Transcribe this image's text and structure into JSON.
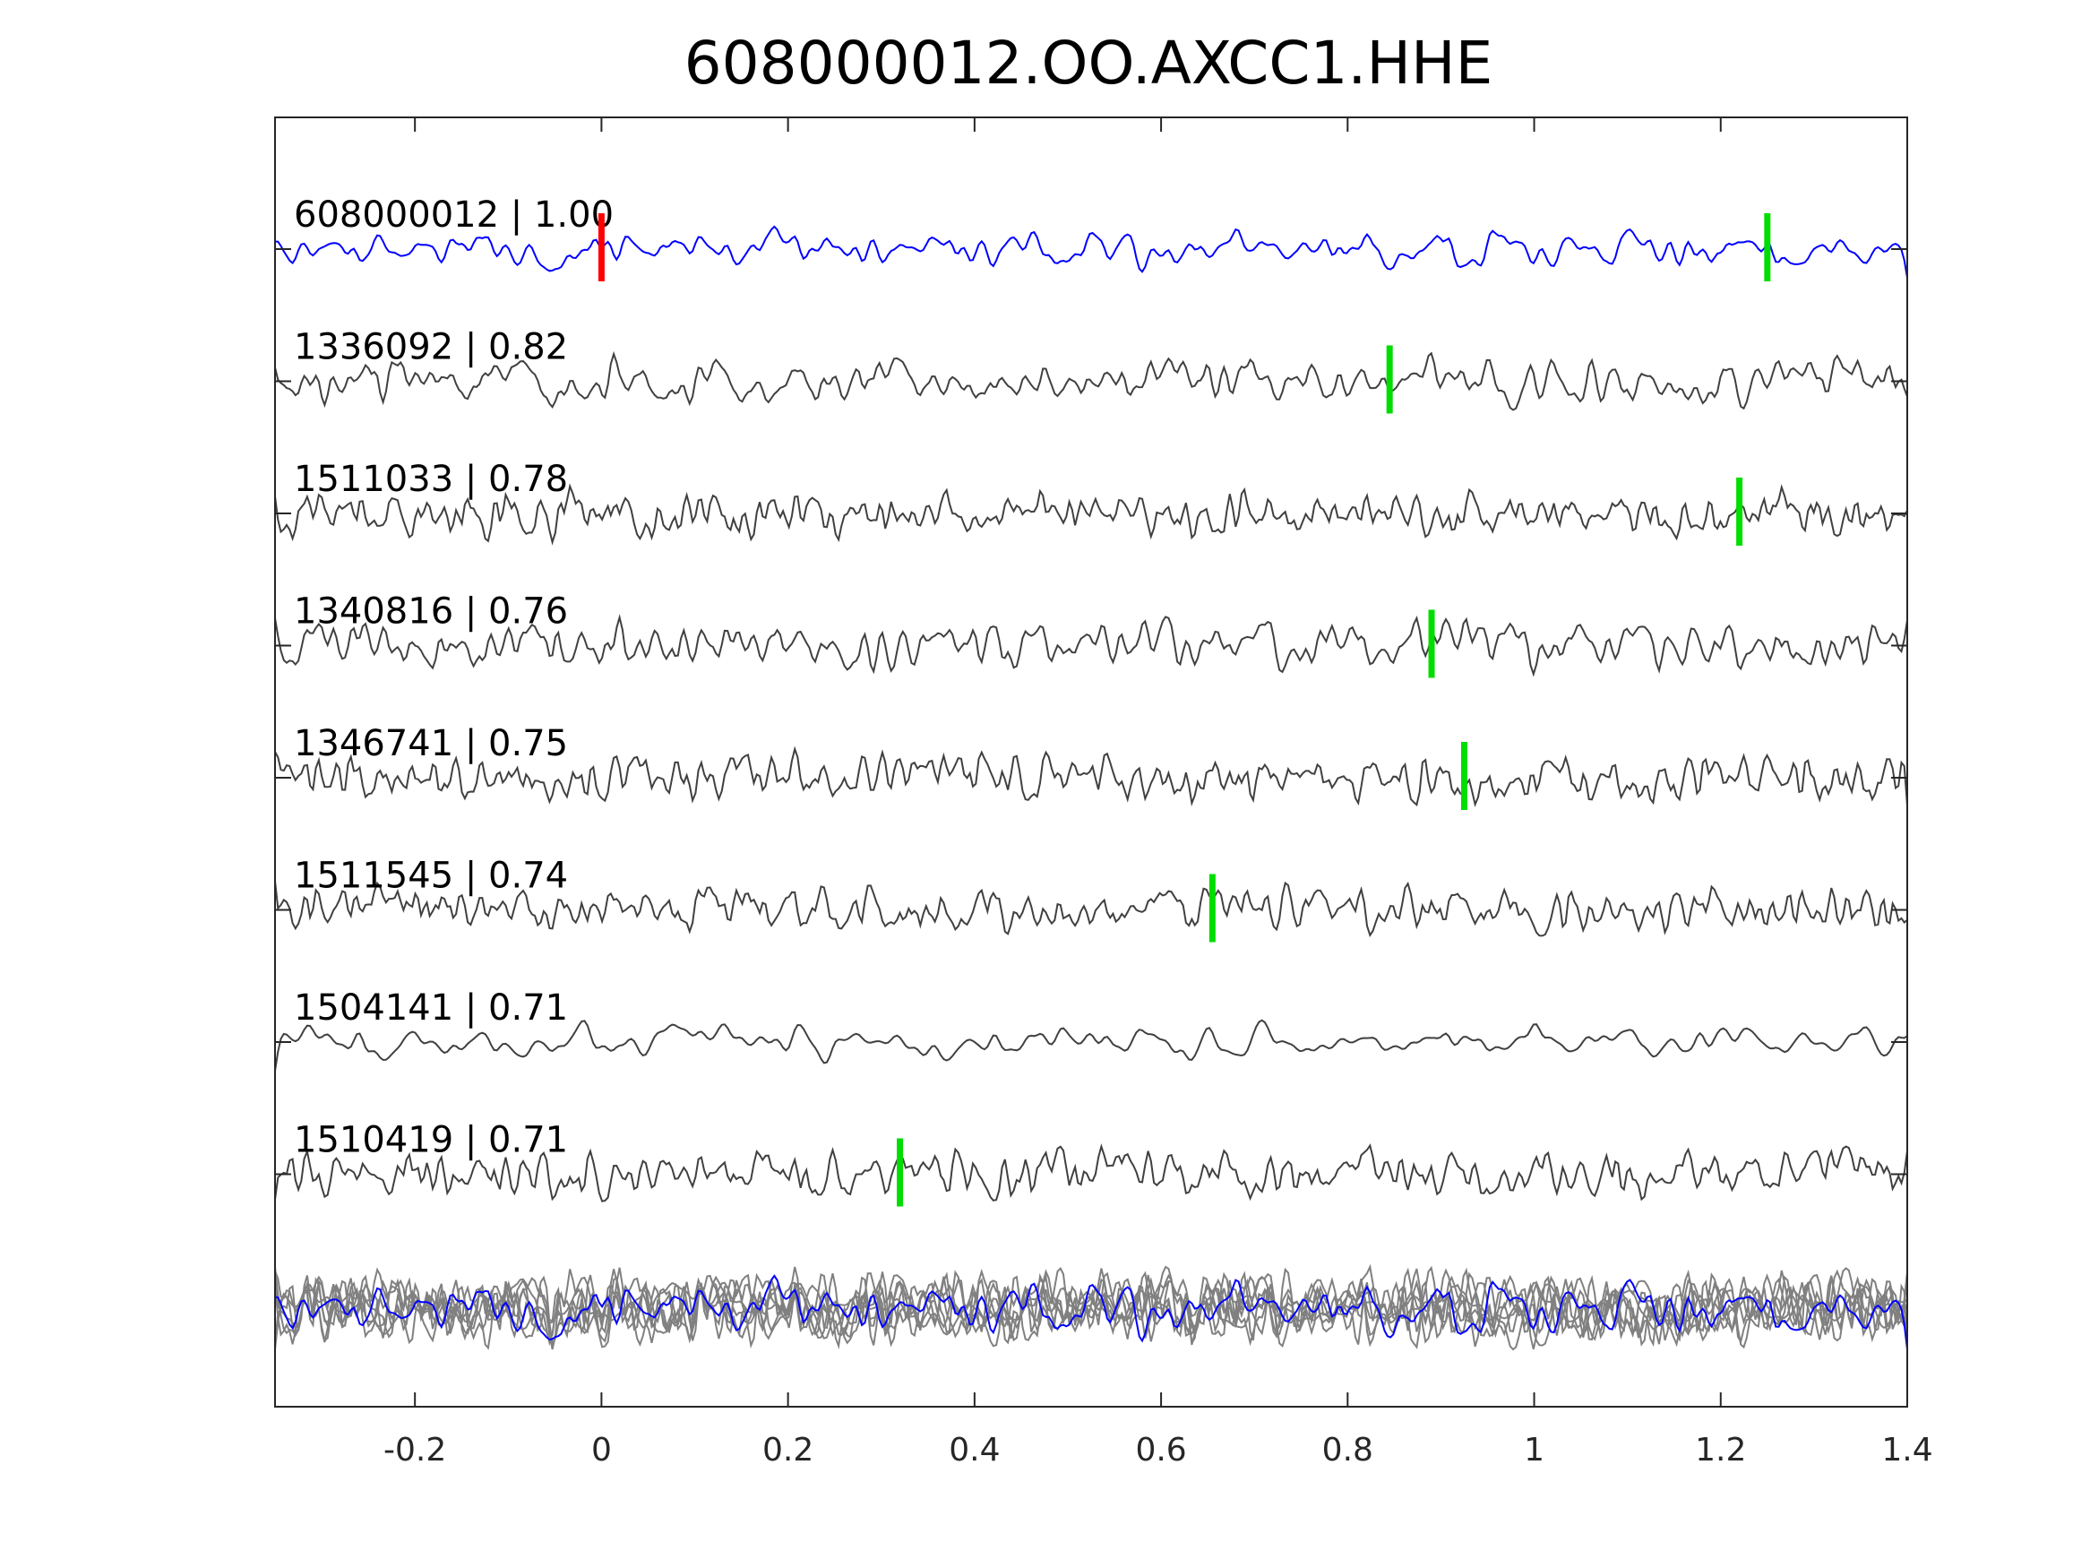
{
  "chart_data": {
    "type": "line",
    "title": "608000012.OO.AXCC1.HHE",
    "xlim": [
      -0.35,
      1.4
    ],
    "xticks": [
      -0.2,
      0,
      0.2,
      0.4,
      0.6,
      0.8,
      1,
      1.2,
      1.4
    ],
    "xtick_labels": [
      "-0.2",
      "0",
      "0.2",
      "0.4",
      "0.6",
      "0.8",
      "1",
      "1.2",
      "1.4"
    ],
    "grid": false,
    "colors": {
      "reference": "#0000ff",
      "trace": "#404040",
      "overlay": "#808080",
      "reference_pick": "#ff0000",
      "pick": "#00dd00",
      "axes": "#262626"
    },
    "series": [
      {
        "name": "608000012",
        "cc": "1.00",
        "label": "608000012 | 1.00",
        "pick": 1.25,
        "reference": true
      },
      {
        "name": "1336092",
        "cc": "0.82",
        "label": "1336092 | 0.82",
        "pick": 0.845
      },
      {
        "name": "1511033",
        "cc": "0.78",
        "label": "1511033 | 0.78",
        "pick": 1.22
      },
      {
        "name": "1340816",
        "cc": "0.76",
        "label": "1340816 | 0.76",
        "pick": 0.89
      },
      {
        "name": "1346741",
        "cc": "0.75",
        "label": "1346741 | 0.75",
        "pick": 0.925
      },
      {
        "name": "1511545",
        "cc": "0.74",
        "label": "1511545 | 0.74",
        "pick": 0.655
      },
      {
        "name": "1504141",
        "cc": "0.71",
        "label": "1504141 | 0.71",
        "pick": null
      },
      {
        "name": "1510419",
        "cc": "0.71",
        "label": "1510419 | 0.71",
        "pick": 0.32
      }
    ],
    "reference_pick": 0,
    "overlay": "stack of all traces"
  }
}
